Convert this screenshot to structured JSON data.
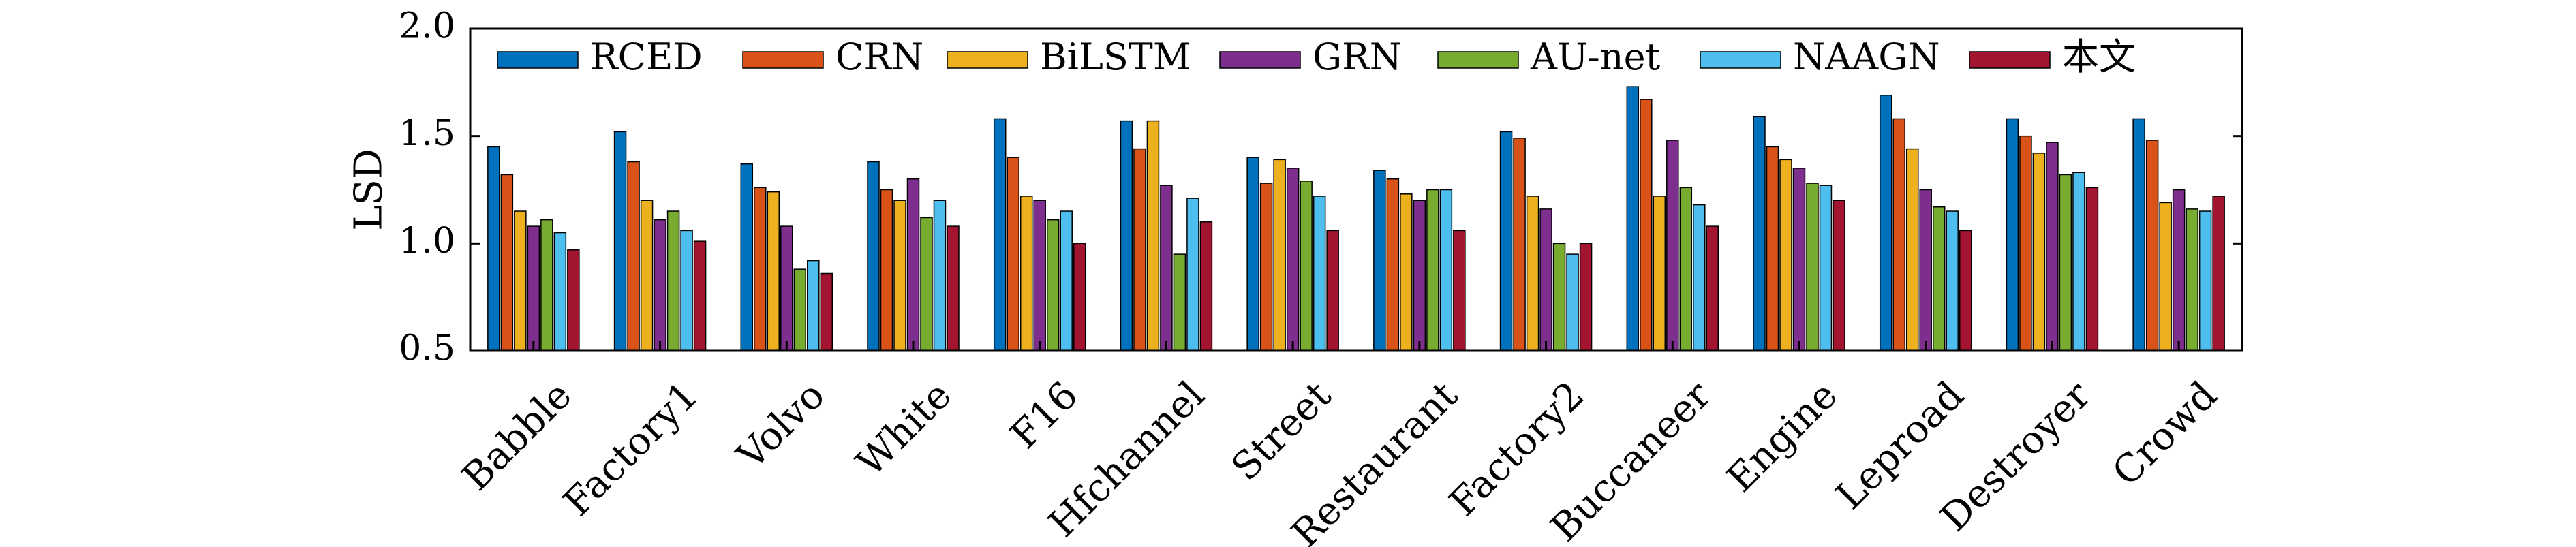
{
  "chart_data": {
    "type": "bar",
    "ylabel": "LSD",
    "xlabel": "",
    "ylim": [
      0.5,
      2.0
    ],
    "yticks": [
      0.5,
      1.0,
      1.5,
      2.0
    ],
    "ytick_labels": [
      "0.5",
      "1.0",
      "1.5",
      "2.0"
    ],
    "grid": false,
    "legend_position": "top",
    "categories": [
      "Babble",
      "Factory1",
      "Volvo",
      "White",
      "F16",
      "Hfchannel",
      "Street",
      "Restaurant",
      "Factory2",
      "Buccaneer",
      "Engine",
      "Leproad",
      "Destroyer",
      "Crowd"
    ],
    "series": [
      {
        "name": "RCED",
        "color": "#0072BD",
        "values": [
          1.45,
          1.52,
          1.37,
          1.38,
          1.58,
          1.57,
          1.4,
          1.34,
          1.52,
          1.73,
          1.59,
          1.69,
          1.58,
          1.58
        ]
      },
      {
        "name": "CRN",
        "color": "#D95319",
        "values": [
          1.32,
          1.38,
          1.26,
          1.25,
          1.4,
          1.44,
          1.28,
          1.3,
          1.49,
          1.67,
          1.45,
          1.58,
          1.5,
          1.48
        ]
      },
      {
        "name": "BiLSTM",
        "color": "#EDB120",
        "values": [
          1.15,
          1.2,
          1.24,
          1.2,
          1.22,
          1.57,
          1.39,
          1.23,
          1.22,
          1.22,
          1.39,
          1.44,
          1.42,
          1.19
        ]
      },
      {
        "name": "GRN",
        "color": "#7E2F8E",
        "values": [
          1.08,
          1.11,
          1.08,
          1.3,
          1.2,
          1.27,
          1.35,
          1.2,
          1.16,
          1.48,
          1.35,
          1.25,
          1.47,
          1.25
        ]
      },
      {
        "name": "AU-net",
        "color": "#77AC30",
        "values": [
          1.11,
          1.15,
          0.88,
          1.12,
          1.11,
          0.95,
          1.29,
          1.25,
          1.0,
          1.26,
          1.28,
          1.17,
          1.32,
          1.16
        ]
      },
      {
        "name": "NAAGN",
        "color": "#4DBEEE",
        "values": [
          1.05,
          1.06,
          0.92,
          1.2,
          1.15,
          1.21,
          1.22,
          1.25,
          0.95,
          1.18,
          1.27,
          1.15,
          1.33,
          1.15
        ]
      },
      {
        "name": "本文",
        "color": "#A2142F",
        "values": [
          0.97,
          1.01,
          0.86,
          1.08,
          1.0,
          1.1,
          1.06,
          1.06,
          1.0,
          1.08,
          1.2,
          1.06,
          1.26,
          1.22
        ]
      }
    ]
  }
}
